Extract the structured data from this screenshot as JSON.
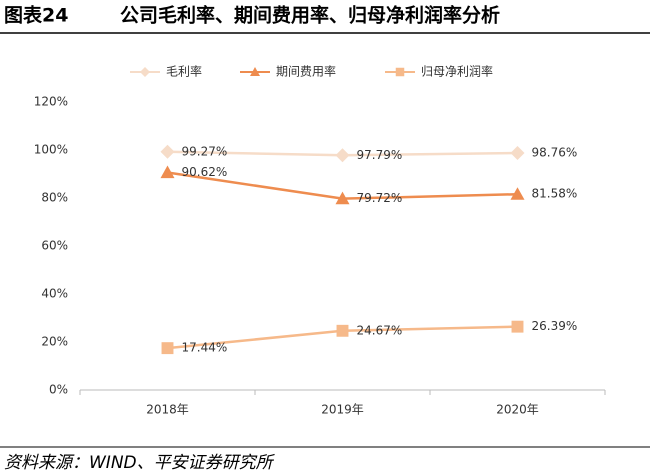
{
  "chart_data": {
    "type": "line",
    "figure_label": "图表24",
    "title": "公司毛利率、期间费用率、归母净利润率分析",
    "source": "资料来源：WIND、平安证券研究所",
    "categories": [
      "2018年",
      "2019年",
      "2020年"
    ],
    "series": [
      {
        "name": "毛利率",
        "color": "#f6dcc8",
        "marker": "diamond",
        "values": [
          99.27,
          97.79,
          98.76
        ],
        "value_labels": [
          "99.27%",
          "97.79%",
          "98.76%"
        ]
      },
      {
        "name": "期间费用率",
        "color": "#ee8c4f",
        "marker": "triangle",
        "values": [
          90.62,
          79.72,
          81.58
        ],
        "value_labels": [
          "90.62%",
          "79.72%",
          "81.58%"
        ]
      },
      {
        "name": "归母净利润率",
        "color": "#f6b98a",
        "marker": "square",
        "values": [
          17.44,
          24.67,
          26.39
        ],
        "value_labels": [
          "17.44%",
          "24.67%",
          "26.39%"
        ]
      }
    ],
    "ylim": [
      0,
      120
    ],
    "yticks": [
      {
        "value": 0,
        "label": "0%"
      },
      {
        "value": 20,
        "label": "20%"
      },
      {
        "value": 40,
        "label": "40%"
      },
      {
        "value": 60,
        "label": "60%"
      },
      {
        "value": 80,
        "label": "80%"
      },
      {
        "value": 100,
        "label": "100%"
      },
      {
        "value": 120,
        "label": "120%"
      }
    ],
    "grid": false,
    "legend": "top"
  }
}
